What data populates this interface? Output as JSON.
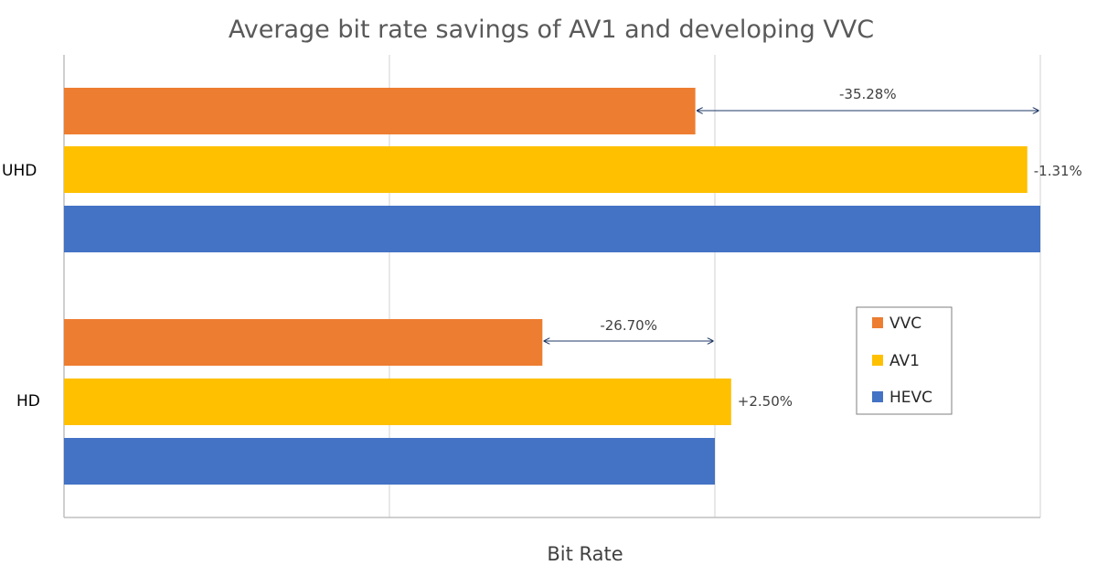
{
  "chart_data": {
    "type": "bar",
    "orientation": "horizontal",
    "title": "Average bit rate savings of AV1 and developing VVC",
    "xlabel": "Bit Rate",
    "ylabel": "",
    "categories": [
      "UHD",
      "HD"
    ],
    "xlim": [
      0,
      3
    ],
    "grid": true,
    "legend": "right",
    "series": [
      {
        "name": "VVC",
        "color": "#ED7D31",
        "values": [
          1.94,
          1.47
        ]
      },
      {
        "name": "AV1",
        "color": "#FFC000",
        "values": [
          2.96,
          2.05
        ]
      },
      {
        "name": "HEVC",
        "color": "#4472C4",
        "values": [
          3.0,
          2.0
        ]
      }
    ],
    "annotations": {
      "uhd_vvc": "-35.28%",
      "uhd_av1": "-1.31%",
      "hd_vvc": "-26.70%",
      "hd_av1": "+2.50%"
    }
  }
}
